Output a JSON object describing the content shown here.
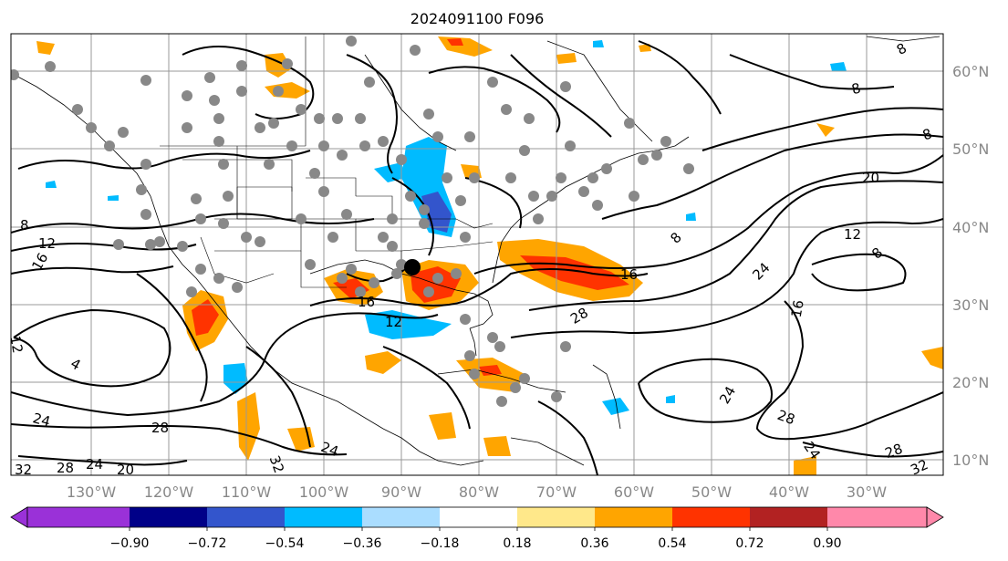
{
  "title": "2024091100 F096",
  "lon_ticks": [
    "130°W",
    "120°W",
    "110°W",
    "100°W",
    "90°W",
    "80°W",
    "70°W",
    "60°W",
    "50°W",
    "40°W",
    "30°W"
  ],
  "lat_ticks": [
    "60°N",
    "50°N",
    "40°N",
    "30°N",
    "20°N",
    "10°N"
  ],
  "colorbar": {
    "labels": [
      "−0.90",
      "−0.72",
      "−0.54",
      "−0.36",
      "−0.18",
      "0.18",
      "0.36",
      "0.54",
      "0.72",
      "0.90"
    ],
    "colors": [
      "#9a31d8",
      "#000088",
      "#3355cc",
      "#00bbff",
      "#aaddff",
      "#ffffff",
      "#ffe88a",
      "#ffa500",
      "#ff3300",
      "#b22222",
      "#ff88aa"
    ],
    "under_color": "#9a31d8",
    "over_color": "#ff88aa"
  },
  "contour_labels": {
    "c8a": "8",
    "c8b": "8",
    "c8c": "8",
    "c8d": "8",
    "c8e": "8",
    "c8f": "8",
    "c12a": "12",
    "c12b": "12",
    "c12c": "12",
    "c12d": "12",
    "c16a": "16",
    "c16b": "16",
    "c16c": "16",
    "c16d": "16",
    "c20a": "20",
    "c20b": "20",
    "c24a": "24",
    "c24b": "24",
    "c24c": "24",
    "c24d": "24",
    "c24e": "24",
    "c24f": "24",
    "c28a": "28",
    "c28b": "28",
    "c28c": "28",
    "c28d": "28",
    "c28e": "28",
    "c32a": "32",
    "c32b": "32",
    "c32c": "32",
    "c4a": "4"
  },
  "colors": {
    "grid": "#999999",
    "contour": "#000000",
    "coast": "#000000",
    "station_dot": "#888888",
    "center_marker": "#000000"
  }
}
